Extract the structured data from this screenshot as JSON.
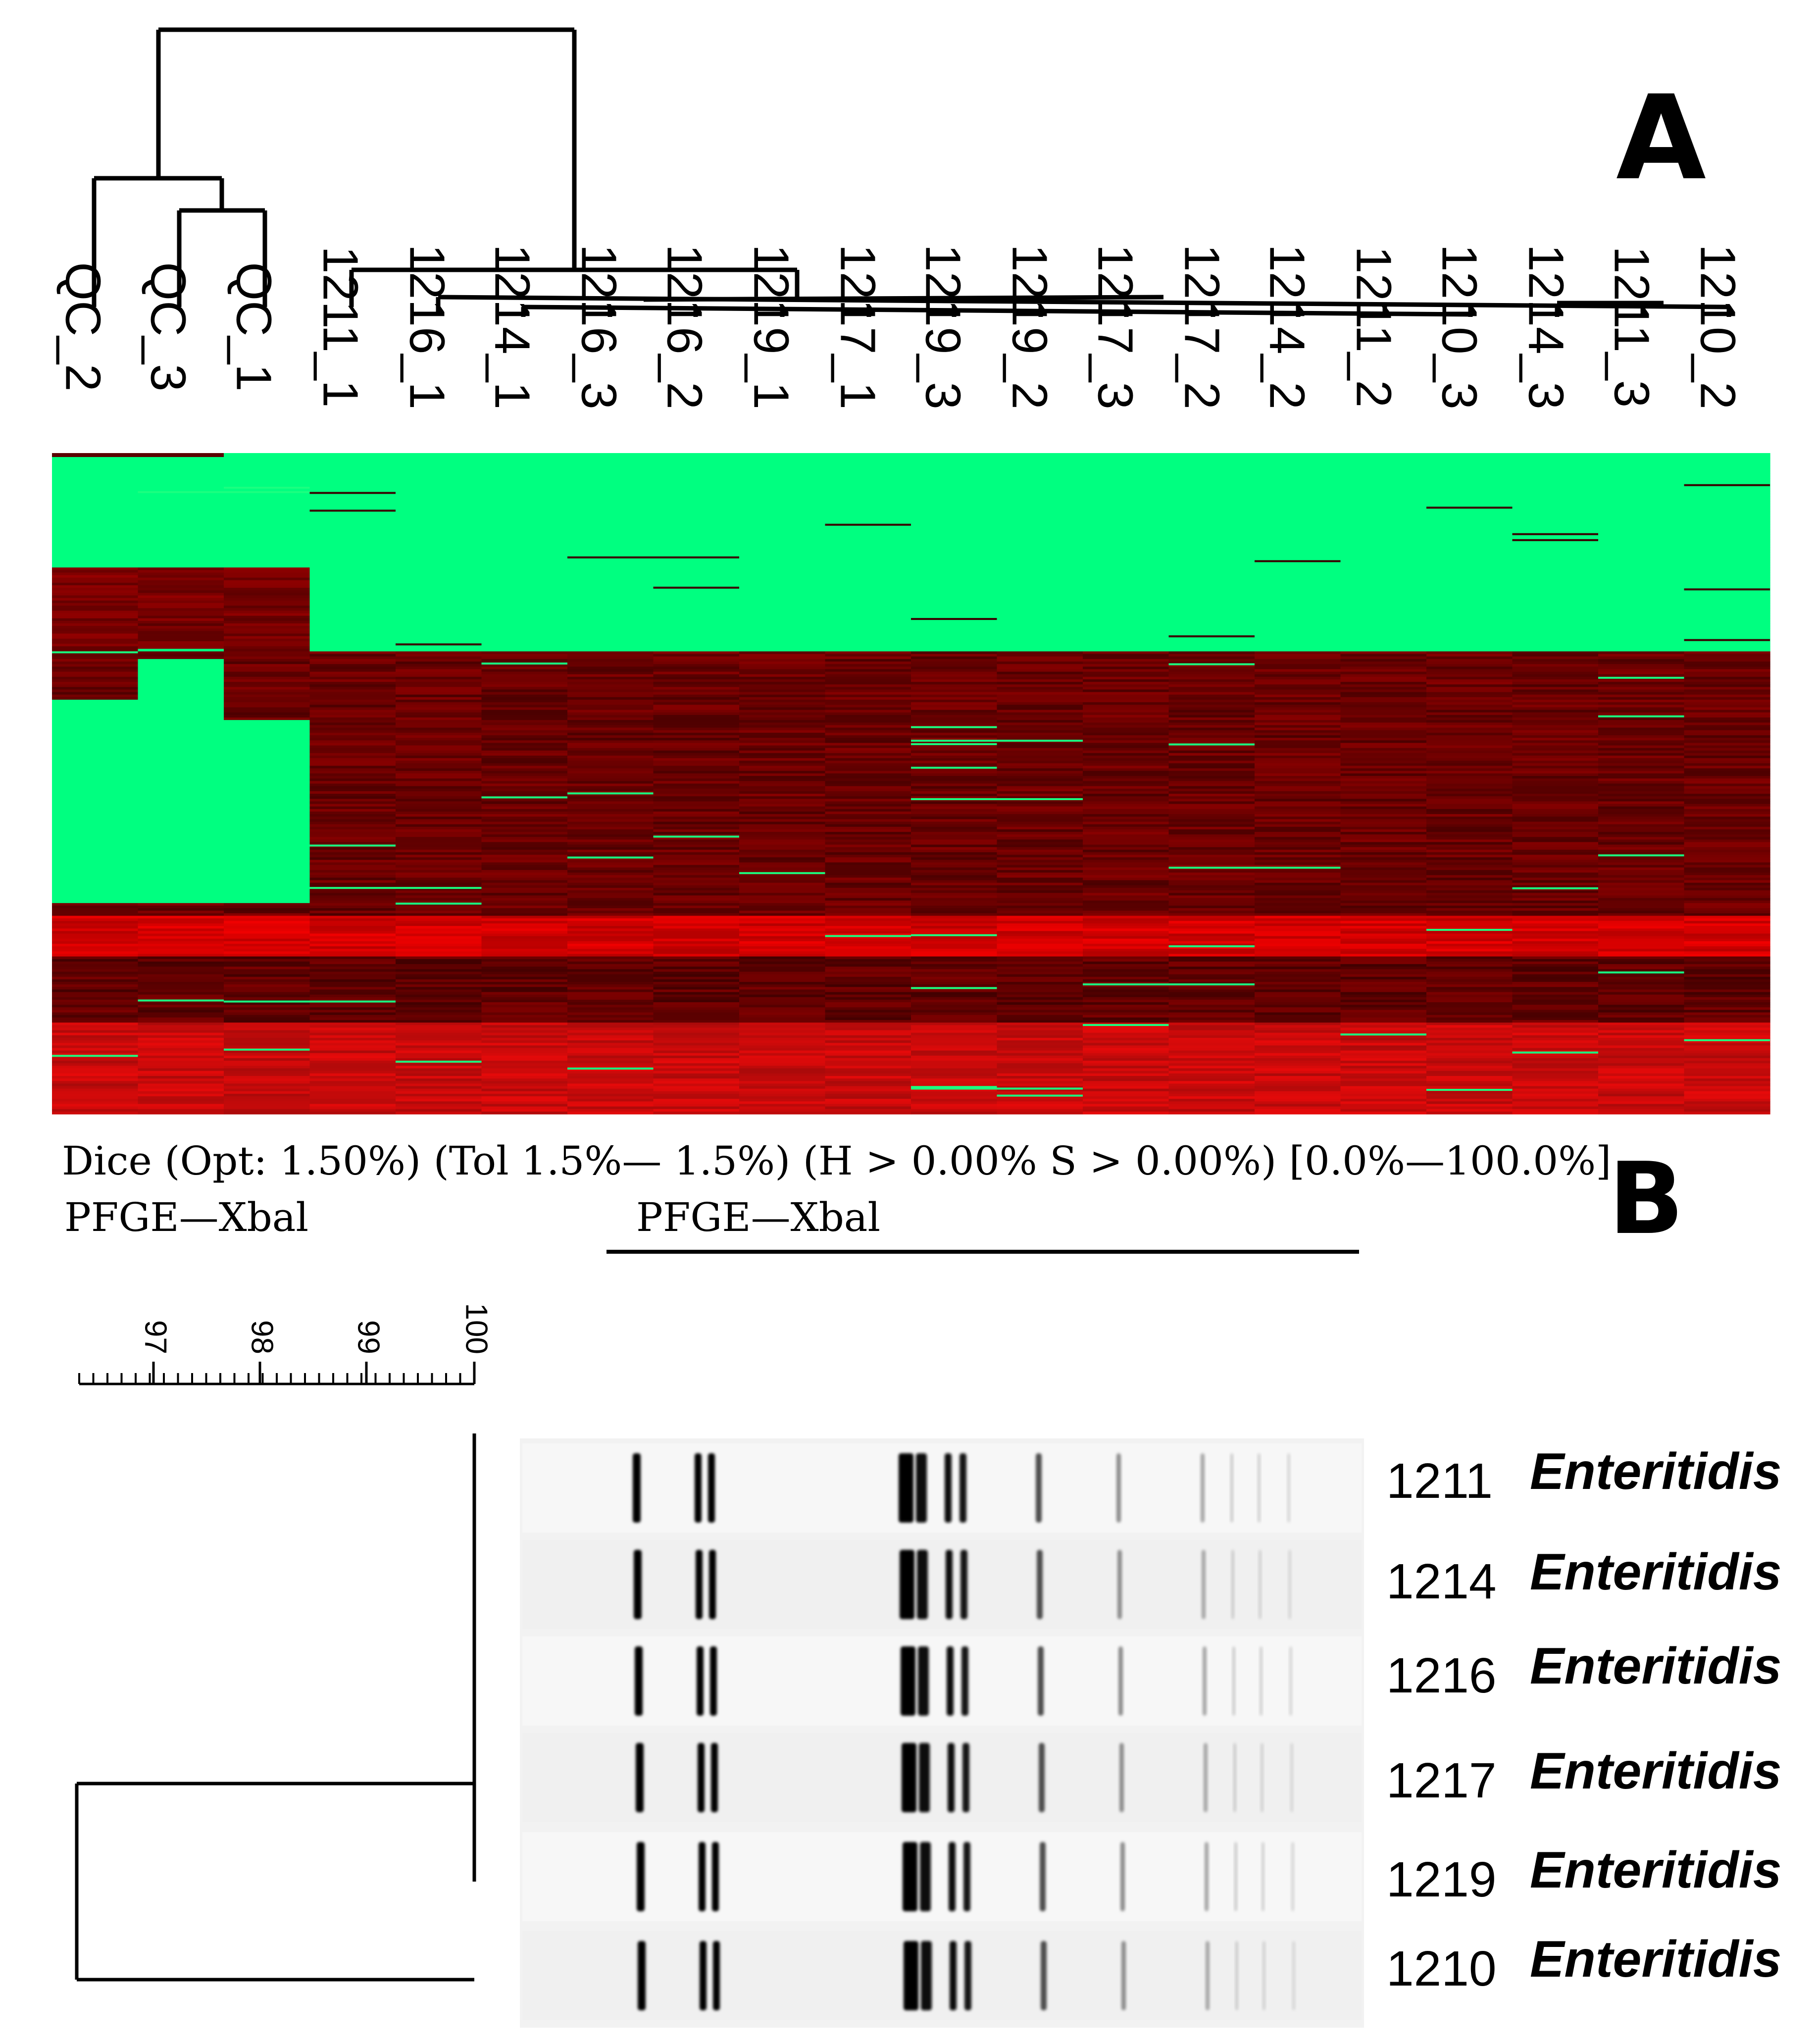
{
  "panel_a": {
    "label": "A",
    "columns": [
      "QC_2",
      "QC_3",
      "QC_1",
      "1211_1",
      "1216_1",
      "1214_1",
      "1216_3",
      "1216_2",
      "1219_1",
      "1217_1",
      "1219_3",
      "1219_2",
      "1217_3",
      "1217_2",
      "1214_2",
      "1211_2",
      "1210_3",
      "1214_3",
      "1211_3",
      "1210_2"
    ],
    "heatmap_colors": {
      "low": "#00ff80",
      "high_dark": "#5a0000",
      "high_mid": "#8a0000",
      "high_bright": "#e60000"
    }
  },
  "caption": {
    "line1": "Dice (Opt: 1.50%) (Tol 1.5%— 1.5%) (H > 0.00%  S > 0.00%) [0.0%—100.0%]",
    "line2_left": "PFGE—Xbal",
    "line2_center": "PFGE—Xbal"
  },
  "panel_b": {
    "label": "B",
    "scale_ticks": [
      "97",
      "98",
      "99",
      "100"
    ],
    "lanes": [
      {
        "id": "1211",
        "serovar": "Enteritidis"
      },
      {
        "id": "1214",
        "serovar": "Enteritidis"
      },
      {
        "id": "1216",
        "serovar": "Enteritidis"
      },
      {
        "id": "1217",
        "serovar": "Enteritidis"
      },
      {
        "id": "1219",
        "serovar": "Enteritidis"
      },
      {
        "id": "1210",
        "serovar": "Enteritidis"
      }
    ]
  }
}
